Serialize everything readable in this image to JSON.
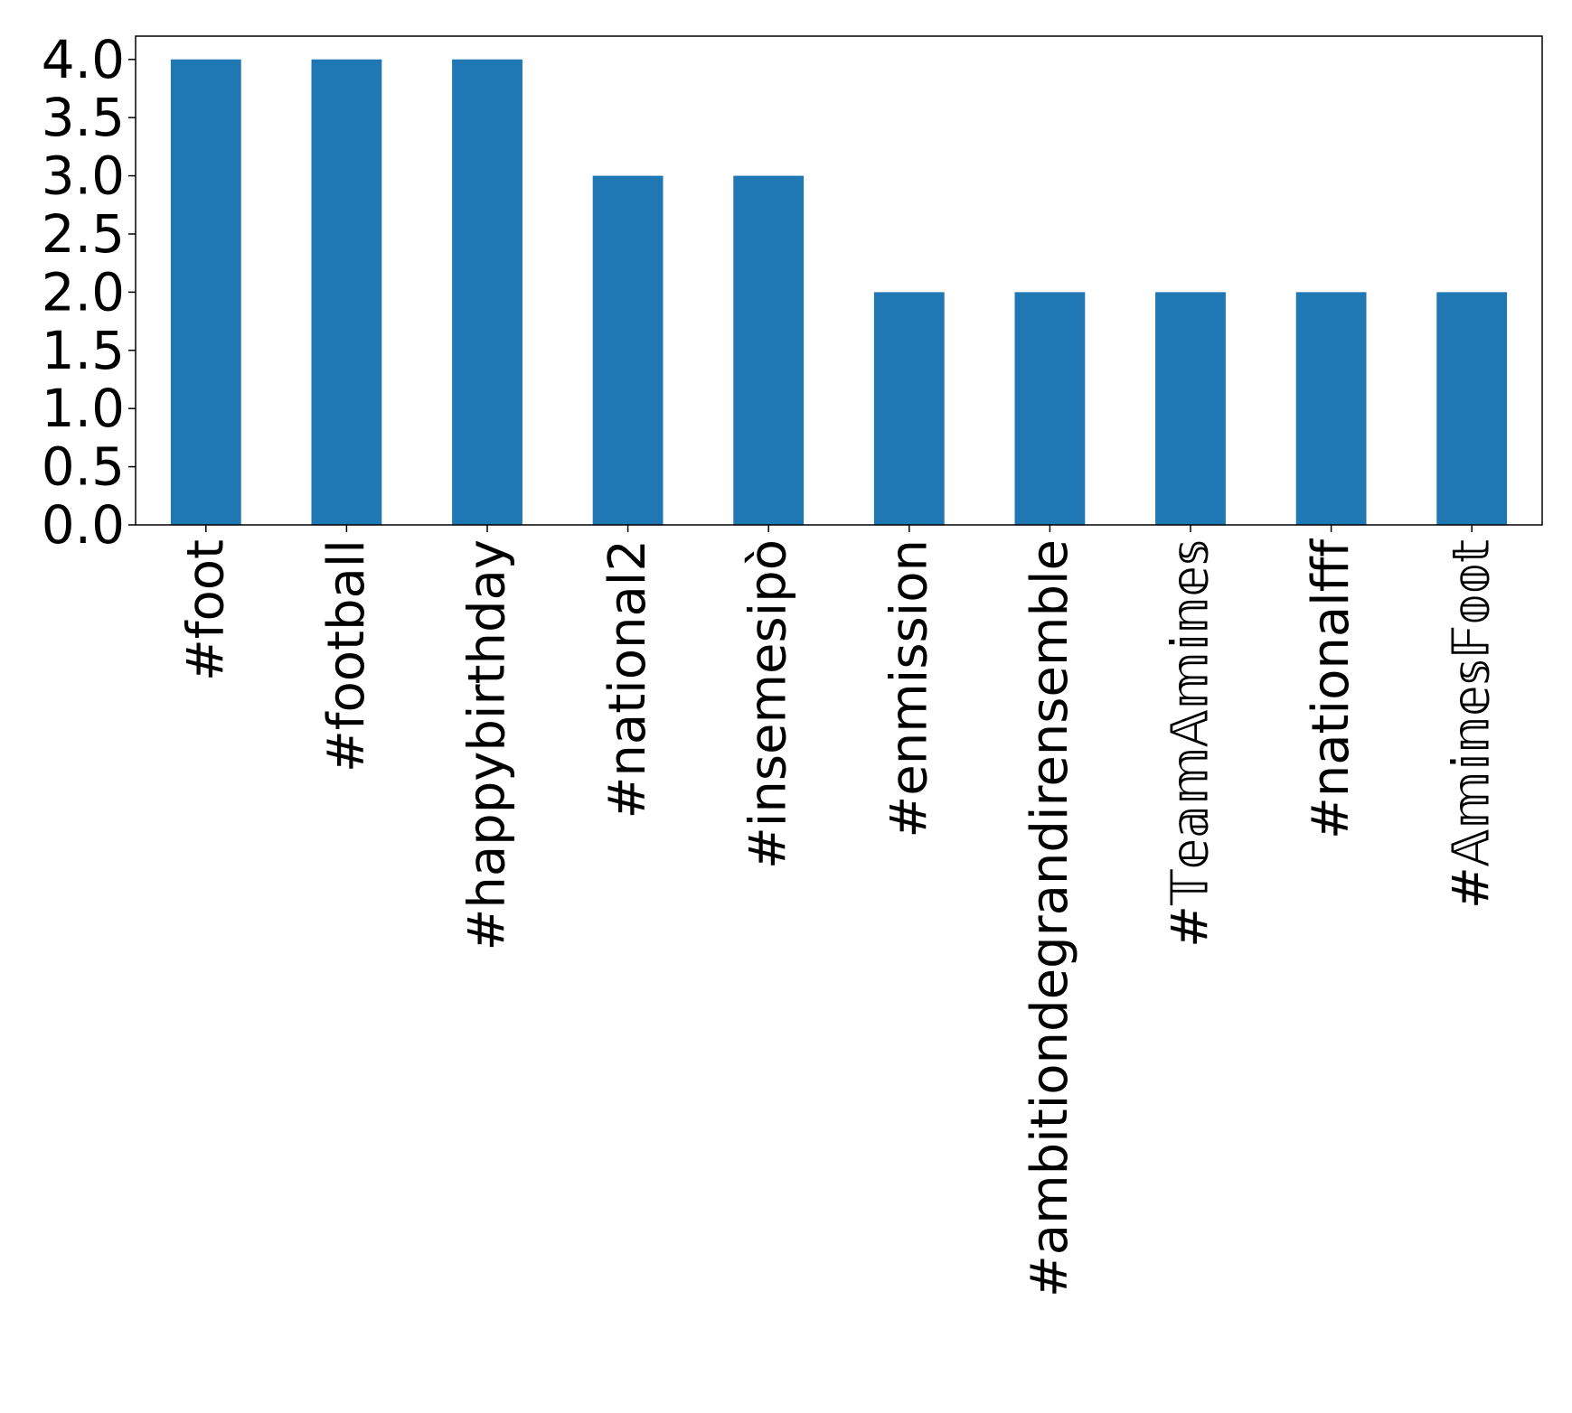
{
  "chart_data": {
    "type": "bar",
    "title": "",
    "xlabel": "",
    "ylabel": "",
    "categories": [
      "#foot",
      "#football",
      "#happybirthday",
      "#national2",
      "#insemesipò",
      "#enmission",
      "#ambitiondegrandirensemble",
      "#𝕋𝕖𝕒𝕞𝔸𝕞𝕚𝕟𝕖𝕤",
      "#nationalfff",
      "#𝔸𝕞𝕚𝕟𝕖𝕤𝔽𝕠𝕠𝕥"
    ],
    "values": [
      4,
      4,
      4,
      3,
      3,
      2,
      2,
      2,
      2,
      2
    ],
    "ylim": [
      0,
      4.2
    ],
    "yticks": [
      "0.0",
      "0.5",
      "1.0",
      "1.5",
      "2.0",
      "2.5",
      "3.0",
      "3.5",
      "4.0"
    ],
    "grid": false,
    "legend": "none",
    "bar_color": "#1f77b4"
  }
}
